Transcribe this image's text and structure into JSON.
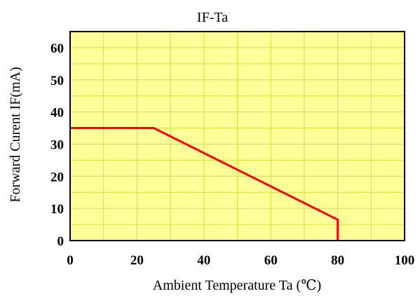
{
  "chart_data": {
    "type": "line",
    "title": "IF-Ta",
    "xlabel": "Ambient Temperature Ta (℃)",
    "ylabel": "Forward Curent IF(mA)",
    "xlim": [
      0,
      100
    ],
    "ylim": [
      0,
      65
    ],
    "x_ticks": [
      0,
      20,
      40,
      60,
      80,
      100
    ],
    "y_ticks": [
      0,
      10,
      20,
      30,
      40,
      50,
      60
    ],
    "grid": true,
    "series": [
      {
        "x": [
          0,
          25,
          80,
          80
        ],
        "y": [
          35,
          35,
          6.5,
          0
        ]
      }
    ]
  },
  "colors": {
    "plot_background": "#ffff99",
    "grid": "#e0d840",
    "series": "#ff0000",
    "axis": "#000000"
  }
}
